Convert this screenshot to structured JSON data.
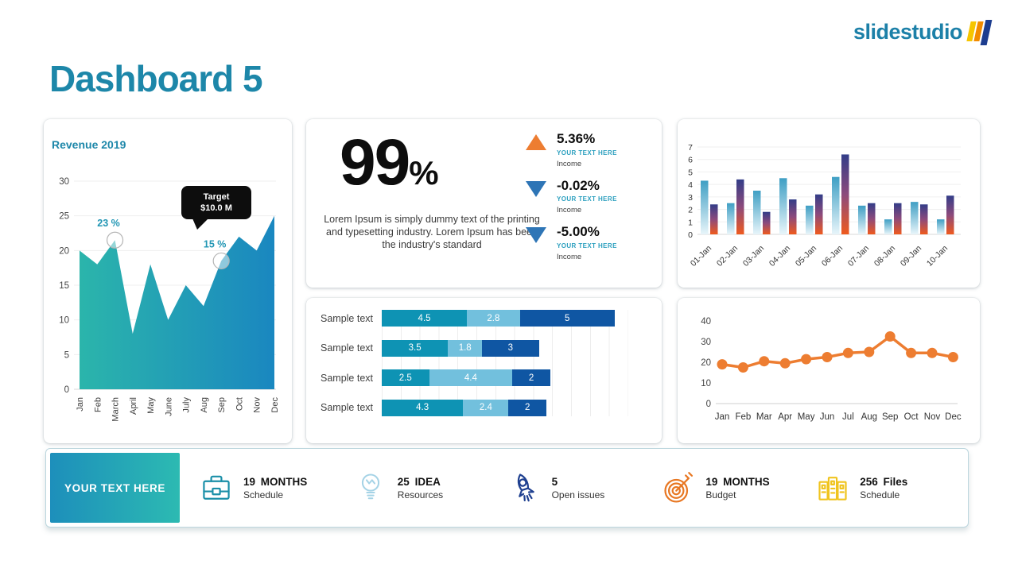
{
  "logo": {
    "text": "slidestudio",
    "bar_colors": [
      "#f6c500",
      "#f28b00",
      "#1d3d8f"
    ]
  },
  "title": "Dashboard 5",
  "colors": {
    "accent_teal": "#1d87a9",
    "kpi_up_orange": "#ed7d31",
    "kpi_down_blue": "#2e75b6",
    "line_orange": "#ed7d31",
    "footer_gradient": [
      "#1d8fbb",
      "#2cbab2"
    ]
  },
  "chart_data": [
    {
      "id": "revenue",
      "type": "area",
      "title": "Revenue 2019",
      "categories": [
        "Jan",
        "Feb",
        "March",
        "April",
        "May",
        "June",
        "July",
        "Aug",
        "Sep",
        "Oct",
        "Nov",
        "Dec"
      ],
      "values": [
        20,
        18,
        21.5,
        8,
        18,
        10,
        15,
        12,
        18.5,
        22,
        20,
        25
      ],
      "ylim": [
        0,
        30
      ],
      "yticks": [
        0,
        5,
        10,
        15,
        20,
        25,
        30
      ],
      "grid": "horizontal",
      "gradient": [
        "#2bb5ab",
        "#1a87c0"
      ],
      "annotations": [
        {
          "index": 2,
          "label": "23 %"
        },
        {
          "index": 8,
          "label": "15 %"
        }
      ],
      "tooltip": {
        "line1": "Target",
        "line2": "$10.0 M"
      }
    },
    {
      "id": "daily-bars",
      "type": "bar",
      "categories": [
        "01-Jan",
        "02-Jan",
        "03-Jan",
        "04-Jan",
        "05-Jan",
        "06-Jan",
        "07-Jan",
        "08-Jan",
        "09-Jan",
        "10-Jan"
      ],
      "series": [
        {
          "name": "series-teal",
          "values": [
            4.3,
            2.5,
            3.5,
            4.5,
            2.3,
            4.6,
            2.3,
            1.2,
            2.6,
            1.2
          ],
          "gradient": [
            "#3f9fc4",
            "#e8f5fa"
          ]
        },
        {
          "name": "series-orange-navy",
          "values": [
            2.4,
            4.4,
            1.8,
            2.8,
            3.2,
            6.4,
            2.5,
            2.5,
            2.4,
            3.1
          ],
          "gradient": [
            "#333d88",
            "#8c4a7c",
            "#ef5a1e"
          ]
        }
      ],
      "ylim": [
        0,
        7
      ],
      "yticks": [
        0,
        1,
        2,
        3,
        4,
        5,
        6,
        7
      ],
      "grid": "horizontal"
    },
    {
      "id": "stacked",
      "type": "stacked-bar",
      "row_label": "Sample text",
      "rows": [
        [
          4.5,
          2.8,
          5
        ],
        [
          3.5,
          1.8,
          3
        ],
        [
          2.5,
          4.4,
          2
        ],
        [
          4.3,
          2.4,
          2
        ]
      ],
      "colors": [
        "#0e93b4",
        "#72c0dd",
        "#0f56a3"
      ],
      "grid": "vertical"
    },
    {
      "id": "monthly-line",
      "type": "line",
      "categories": [
        "Jan",
        "Feb",
        "Mar",
        "Apr",
        "May",
        "Jun",
        "Jul",
        "Aug",
        "Sep",
        "Oct",
        "Nov",
        "Dec"
      ],
      "values": [
        19,
        17.5,
        20.5,
        19.5,
        21.5,
        22.5,
        24.5,
        25,
        32.5,
        24.5,
        24.5,
        22.5
      ],
      "ylim": [
        0,
        40
      ],
      "yticks": [
        0,
        10,
        20,
        30,
        40
      ],
      "color": "#ed7d31",
      "markers": true
    }
  ],
  "kpi_panel": {
    "big_value": "99",
    "big_unit": "%",
    "paragraph": "Lorem Ipsum is simply dummy text of the printing and typesetting industry. Lorem Ipsum has been the industry's standard",
    "items": [
      {
        "direction": "up",
        "value": "5.36%",
        "subtitle": "YOUR TEXT HERE",
        "caption": "Income",
        "arrow_color": "#ed7d31"
      },
      {
        "direction": "down",
        "value": "-0.02%",
        "subtitle": "YOUR TEXT HERE",
        "caption": "Income",
        "arrow_color": "#2e75b6"
      },
      {
        "direction": "down",
        "value": "-5.00%",
        "subtitle": "YOUR TEXT HERE",
        "caption": "Income",
        "arrow_color": "#2e75b6"
      }
    ]
  },
  "footer": {
    "highlight_label": "YOUR TEXT HERE",
    "items": [
      {
        "icon": "briefcase-icon",
        "value": "19 MONTHS",
        "label": "Schedule",
        "color": "#1a8fa8"
      },
      {
        "icon": "lightbulb-icon",
        "value": "25 IDEA",
        "label": "Resources",
        "color": "#a5d3e6"
      },
      {
        "icon": "rocket-icon",
        "value": "5",
        "label": "Open issues",
        "color": "#1f4090"
      },
      {
        "icon": "target-icon",
        "value": "19 MONTHS",
        "label": "Budget",
        "color": "#e87722"
      },
      {
        "icon": "files-icon",
        "value": "256 Files",
        "label": "Schedule",
        "color": "#f0c41e"
      }
    ]
  }
}
